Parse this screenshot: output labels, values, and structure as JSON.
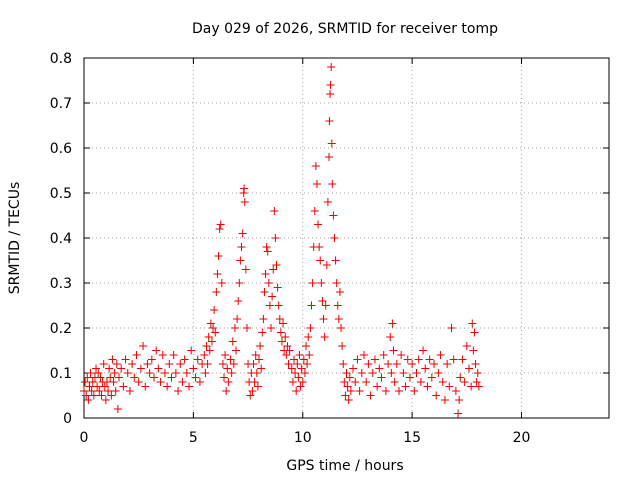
{
  "chart_data": {
    "type": "scatter",
    "title": "Day 029 of 2026, SRMTID for receiver tomp",
    "xlabel": "GPS time / hours",
    "ylabel": "SRMTID / TECUs",
    "xlim": [
      0,
      24
    ],
    "ylim": [
      0,
      0.8
    ],
    "xticks": [
      0,
      5,
      10,
      15,
      20
    ],
    "xtick_labels": [
      "0",
      "5",
      "10",
      "15",
      "20"
    ],
    "yticks": [
      0,
      0.1,
      0.2,
      0.3,
      0.4,
      0.5,
      0.6,
      0.7,
      0.8
    ],
    "ytick_labels": [
      "0",
      "0.1",
      "0.2",
      "0.3",
      "0.4",
      "0.5",
      "0.6",
      "0.7",
      "0.8"
    ],
    "grid": true,
    "marker": "plus",
    "marker_color": "#ee0000",
    "series": [
      {
        "name": "SRMTID",
        "points": [
          [
            0.0,
            0.06
          ],
          [
            0.05,
            0.08
          ],
          [
            0.1,
            0.05
          ],
          [
            0.15,
            0.09
          ],
          [
            0.2,
            0.04
          ],
          [
            0.25,
            0.07
          ],
          [
            0.3,
            0.1
          ],
          [
            0.35,
            0.06
          ],
          [
            0.4,
            0.08
          ],
          [
            0.45,
            0.05
          ],
          [
            0.5,
            0.09
          ],
          [
            0.55,
            0.11
          ],
          [
            0.6,
            0.07
          ],
          [
            0.65,
            0.1
          ],
          [
            0.7,
            0.06
          ],
          [
            0.75,
            0.09
          ],
          [
            0.8,
            0.05
          ],
          [
            0.85,
            0.08
          ],
          [
            0.9,
            0.12
          ],
          [
            0.95,
            0.07
          ],
          [
            1.0,
            0.04
          ],
          [
            1.05,
            0.08
          ],
          [
            1.1,
            0.06
          ],
          [
            1.15,
            0.11
          ],
          [
            1.2,
            0.09
          ],
          [
            1.25,
            0.05
          ],
          [
            1.3,
            0.13
          ],
          [
            1.35,
            0.08
          ],
          [
            1.4,
            0.1
          ],
          [
            1.45,
            0.06
          ],
          [
            1.5,
            0.12
          ],
          [
            1.55,
            0.02
          ],
          [
            1.6,
            0.09
          ],
          [
            1.7,
            0.11
          ],
          [
            1.8,
            0.07
          ],
          [
            1.9,
            0.13
          ],
          [
            2.0,
            0.1
          ],
          [
            2.1,
            0.06
          ],
          [
            2.2,
            0.12
          ],
          [
            2.3,
            0.09
          ],
          [
            2.4,
            0.14
          ],
          [
            2.5,
            0.08
          ],
          [
            2.6,
            0.11
          ],
          [
            2.7,
            0.16
          ],
          [
            2.8,
            0.07
          ],
          [
            2.9,
            0.12
          ],
          [
            3.0,
            0.1
          ],
          [
            3.1,
            0.13
          ],
          [
            3.2,
            0.09
          ],
          [
            3.3,
            0.15
          ],
          [
            3.4,
            0.11
          ],
          [
            3.5,
            0.08
          ],
          [
            3.6,
            0.14
          ],
          [
            3.7,
            0.1
          ],
          [
            3.8,
            0.07
          ],
          [
            3.9,
            0.12
          ],
          [
            4.0,
            0.09
          ],
          [
            4.1,
            0.14
          ],
          [
            4.2,
            0.1
          ],
          [
            4.3,
            0.06
          ],
          [
            4.4,
            0.12
          ],
          [
            4.5,
            0.08
          ],
          [
            4.6,
            0.13
          ],
          [
            4.7,
            0.1
          ],
          [
            4.8,
            0.07
          ],
          [
            4.9,
            0.15
          ],
          [
            5.0,
            0.11
          ],
          [
            5.1,
            0.09
          ],
          [
            5.2,
            0.13
          ],
          [
            5.3,
            0.08
          ],
          [
            5.4,
            0.12
          ],
          [
            5.5,
            0.14
          ],
          [
            5.55,
            0.1
          ],
          [
            5.6,
            0.16
          ],
          [
            5.65,
            0.12
          ],
          [
            5.7,
            0.18
          ],
          [
            5.75,
            0.15
          ],
          [
            5.8,
            0.21
          ],
          [
            5.85,
            0.17
          ],
          [
            5.9,
            0.2
          ],
          [
            5.95,
            0.24
          ],
          [
            6.0,
            0.19
          ],
          [
            6.05,
            0.28
          ],
          [
            6.1,
            0.32
          ],
          [
            6.15,
            0.36
          ],
          [
            6.2,
            0.42
          ],
          [
            6.25,
            0.43
          ],
          [
            6.3,
            0.3
          ],
          [
            6.35,
            0.12
          ],
          [
            6.4,
            0.09
          ],
          [
            6.45,
            0.14
          ],
          [
            6.5,
            0.06
          ],
          [
            6.55,
            0.11
          ],
          [
            6.6,
            0.08
          ],
          [
            6.7,
            0.13
          ],
          [
            6.75,
            0.1
          ],
          [
            6.8,
            0.17
          ],
          [
            6.85,
            0.12
          ],
          [
            6.9,
            0.2
          ],
          [
            6.95,
            0.15
          ],
          [
            7.0,
            0.22
          ],
          [
            7.05,
            0.26
          ],
          [
            7.1,
            0.3
          ],
          [
            7.15,
            0.35
          ],
          [
            7.2,
            0.38
          ],
          [
            7.25,
            0.41
          ],
          [
            7.3,
            0.5
          ],
          [
            7.32,
            0.51
          ],
          [
            7.35,
            0.48
          ],
          [
            7.4,
            0.33
          ],
          [
            7.45,
            0.2
          ],
          [
            7.5,
            0.12
          ],
          [
            7.55,
            0.08
          ],
          [
            7.6,
            0.05
          ],
          [
            7.65,
            0.1
          ],
          [
            7.7,
            0.06
          ],
          [
            7.75,
            0.12
          ],
          [
            7.8,
            0.08
          ],
          [
            7.85,
            0.14
          ],
          [
            7.9,
            0.1
          ],
          [
            7.95,
            0.07
          ],
          [
            8.0,
            0.13
          ],
          [
            8.05,
            0.16
          ],
          [
            8.1,
            0.11
          ],
          [
            8.15,
            0.19
          ],
          [
            8.2,
            0.22
          ],
          [
            8.25,
            0.28
          ],
          [
            8.3,
            0.32
          ],
          [
            8.35,
            0.38
          ],
          [
            8.4,
            0.37
          ],
          [
            8.45,
            0.3
          ],
          [
            8.5,
            0.25
          ],
          [
            8.55,
            0.2
          ],
          [
            8.6,
            0.27
          ],
          [
            8.65,
            0.33
          ],
          [
            8.7,
            0.46
          ],
          [
            8.75,
            0.4
          ],
          [
            8.8,
            0.34
          ],
          [
            8.85,
            0.29
          ],
          [
            8.9,
            0.25
          ],
          [
            8.95,
            0.22
          ],
          [
            9.0,
            0.19
          ],
          [
            9.05,
            0.17
          ],
          [
            9.1,
            0.21
          ],
          [
            9.15,
            0.15
          ],
          [
            9.2,
            0.18
          ],
          [
            9.25,
            0.14
          ],
          [
            9.3,
            0.16
          ],
          [
            9.35,
            0.12
          ],
          [
            9.4,
            0.15
          ],
          [
            9.5,
            0.11
          ],
          [
            9.55,
            0.08
          ],
          [
            9.6,
            0.13
          ],
          [
            9.65,
            0.1
          ],
          [
            9.7,
            0.06
          ],
          [
            9.75,
            0.12
          ],
          [
            9.8,
            0.09
          ],
          [
            9.85,
            0.14
          ],
          [
            9.9,
            0.07
          ],
          [
            9.95,
            0.11
          ],
          [
            10.0,
            0.08
          ],
          [
            10.05,
            0.13
          ],
          [
            10.1,
            0.1
          ],
          [
            10.15,
            0.16
          ],
          [
            10.2,
            0.12
          ],
          [
            10.25,
            0.18
          ],
          [
            10.3,
            0.14
          ],
          [
            10.35,
            0.2
          ],
          [
            10.4,
            0.25
          ],
          [
            10.45,
            0.3
          ],
          [
            10.5,
            0.38
          ],
          [
            10.55,
            0.46
          ],
          [
            10.6,
            0.56
          ],
          [
            10.65,
            0.52
          ],
          [
            10.7,
            0.43
          ],
          [
            10.75,
            0.38
          ],
          [
            10.8,
            0.35
          ],
          [
            10.85,
            0.3
          ],
          [
            10.9,
            0.26
          ],
          [
            10.95,
            0.22
          ],
          [
            11.0,
            0.18
          ],
          [
            11.05,
            0.25
          ],
          [
            11.1,
            0.34
          ],
          [
            11.15,
            0.48
          ],
          [
            11.2,
            0.58
          ],
          [
            11.22,
            0.66
          ],
          [
            11.25,
            0.72
          ],
          [
            11.27,
            0.74
          ],
          [
            11.3,
            0.78
          ],
          [
            11.33,
            0.61
          ],
          [
            11.35,
            0.52
          ],
          [
            11.4,
            0.45
          ],
          [
            11.45,
            0.4
          ],
          [
            11.5,
            0.35
          ],
          [
            11.55,
            0.3
          ],
          [
            11.6,
            0.25
          ],
          [
            11.65,
            0.22
          ],
          [
            11.7,
            0.28
          ],
          [
            11.75,
            0.2
          ],
          [
            11.8,
            0.16
          ],
          [
            11.85,
            0.12
          ],
          [
            11.9,
            0.08
          ],
          [
            11.95,
            0.05
          ],
          [
            12.0,
            0.1
          ],
          [
            12.05,
            0.07
          ],
          [
            12.1,
            0.04
          ],
          [
            12.15,
            0.09
          ],
          [
            12.2,
            0.06
          ],
          [
            12.3,
            0.11
          ],
          [
            12.4,
            0.08
          ],
          [
            12.5,
            0.13
          ],
          [
            12.6,
            0.06
          ],
          [
            12.7,
            0.1
          ],
          [
            12.8,
            0.14
          ],
          [
            12.9,
            0.08
          ],
          [
            13.0,
            0.12
          ],
          [
            13.1,
            0.05
          ],
          [
            13.2,
            0.1
          ],
          [
            13.3,
            0.13
          ],
          [
            13.4,
            0.07
          ],
          [
            13.5,
            0.11
          ],
          [
            13.6,
            0.09
          ],
          [
            13.7,
            0.14
          ],
          [
            13.8,
            0.06
          ],
          [
            13.9,
            0.12
          ],
          [
            14.0,
            0.18
          ],
          [
            14.05,
            0.1
          ],
          [
            14.1,
            0.21
          ],
          [
            14.15,
            0.15
          ],
          [
            14.2,
            0.08
          ],
          [
            14.3,
            0.12
          ],
          [
            14.4,
            0.06
          ],
          [
            14.5,
            0.14
          ],
          [
            14.6,
            0.1
          ],
          [
            14.7,
            0.07
          ],
          [
            14.8,
            0.13
          ],
          [
            14.9,
            0.09
          ],
          [
            15.0,
            0.12
          ],
          [
            15.1,
            0.06
          ],
          [
            15.2,
            0.1
          ],
          [
            15.3,
            0.13
          ],
          [
            15.4,
            0.08
          ],
          [
            15.5,
            0.15
          ],
          [
            15.6,
            0.11
          ],
          [
            15.7,
            0.07
          ],
          [
            15.8,
            0.13
          ],
          [
            15.9,
            0.09
          ],
          [
            16.0,
            0.12
          ],
          [
            16.1,
            0.05
          ],
          [
            16.2,
            0.1
          ],
          [
            16.3,
            0.14
          ],
          [
            16.4,
            0.08
          ],
          [
            16.5,
            0.04
          ],
          [
            16.6,
            0.12
          ],
          [
            16.7,
            0.07
          ],
          [
            16.8,
            0.2
          ],
          [
            16.9,
            0.13
          ],
          [
            17.0,
            0.06
          ],
          [
            17.1,
            0.01
          ],
          [
            17.15,
            0.04
          ],
          [
            17.2,
            0.09
          ],
          [
            17.3,
            0.13
          ],
          [
            17.4,
            0.08
          ],
          [
            17.5,
            0.16
          ],
          [
            17.6,
            0.11
          ],
          [
            17.7,
            0.07
          ],
          [
            17.75,
            0.21
          ],
          [
            17.8,
            0.15
          ],
          [
            17.85,
            0.19
          ],
          [
            17.9,
            0.12
          ],
          [
            17.95,
            0.08
          ],
          [
            18.0,
            0.1
          ],
          [
            18.05,
            0.07
          ]
        ]
      }
    ]
  }
}
